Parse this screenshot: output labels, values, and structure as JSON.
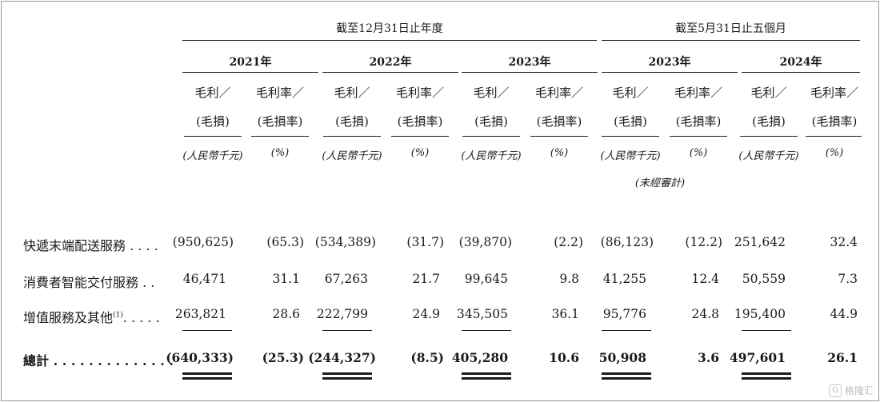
{
  "periods": [
    {
      "label": "截至12月31日止年度"
    },
    {
      "label": "截至5月31日止五個月"
    }
  ],
  "years": [
    "2021年",
    "2022年",
    "2023年",
    "2023年",
    "2024年"
  ],
  "column_headers": {
    "profit_line1": "毛利／",
    "profit_line2": "(毛損)",
    "profit_unit": "(人民幣千元)",
    "rate_line1": "毛利率／",
    "rate_line2": "(毛損率)",
    "rate_unit": "(%)"
  },
  "unaudited_note": "(未經審計)",
  "rows": [
    {
      "label": "快遞末端配送服務 . . . .",
      "values": [
        "(950,625)",
        "(65.3)",
        "(534,389)",
        "(31.7)",
        "(39,870)",
        "(2.2)",
        "(86,123)",
        "(12.2)",
        "251,642",
        "32.4"
      ]
    },
    {
      "label": "消費者智能交付服務 . .",
      "values": [
        "46,471",
        "31.1",
        "67,263",
        "21.7",
        "99,645",
        "9.8",
        "41,255",
        "12.4",
        "50,559",
        "7.3"
      ]
    },
    {
      "label": "增值服務及其他",
      "label_sup": "(1)",
      "label_dots": ". . . . .",
      "values": [
        "263,821",
        "28.6",
        "222,799",
        "24.9",
        "345,505",
        "36.1",
        "95,776",
        "24.8",
        "195,400",
        "44.9"
      ]
    },
    {
      "label": "總計 . . . . . . . . . . . . . .",
      "values": [
        "(640,333)",
        "(25.3)",
        "(244,327)",
        "(8.5)",
        "405,280",
        "10.6",
        "50,908",
        "3.6",
        "497,601",
        "26.1"
      ]
    }
  ],
  "watermark": {
    "text": "格隆汇",
    "icon": "G"
  }
}
